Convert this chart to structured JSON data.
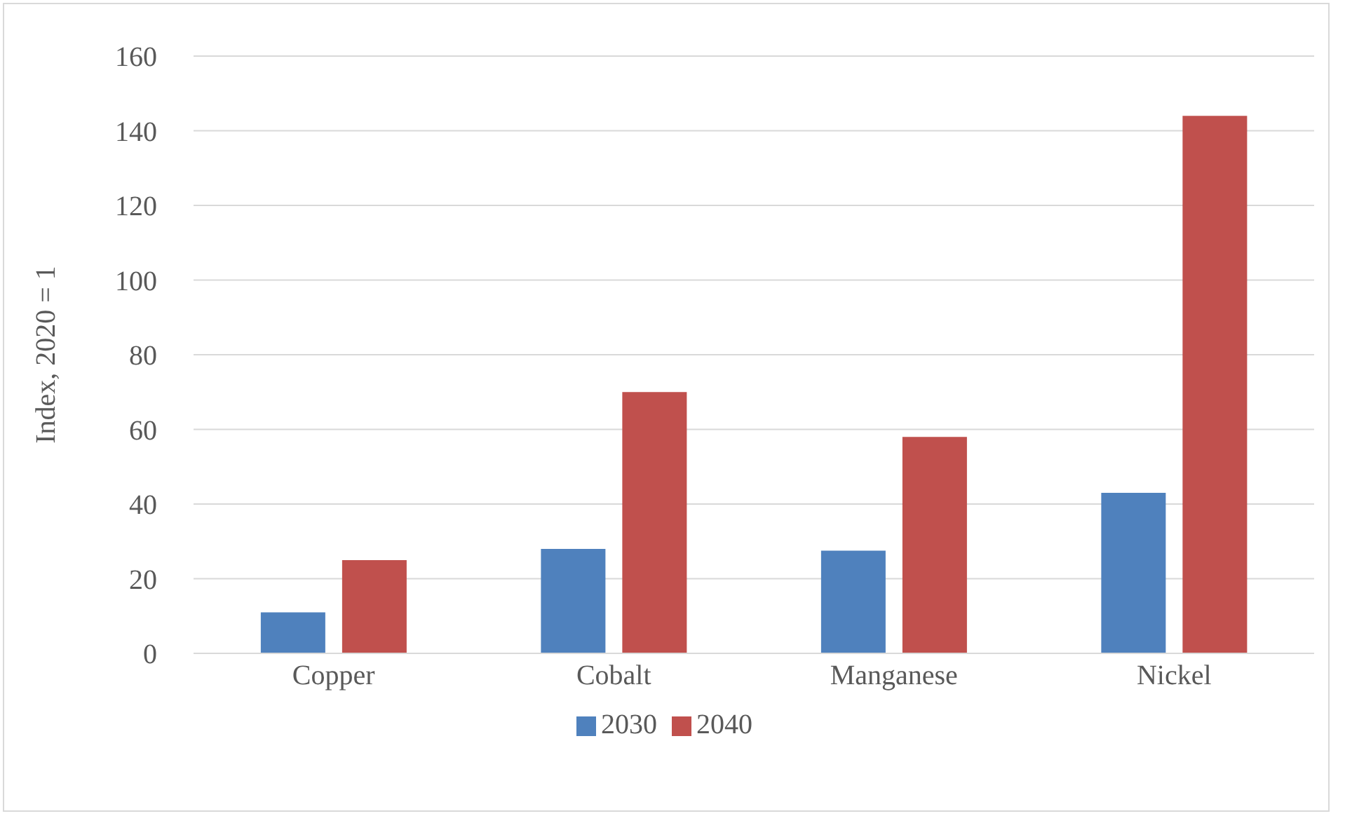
{
  "chart_data": {
    "type": "bar",
    "ylabel": "Index, 2020 = 1",
    "categories": [
      "Copper",
      "Cobalt",
      "Manganese",
      "Nickel"
    ],
    "series": [
      {
        "name": "2030",
        "color": "#4f81bd",
        "values": [
          11,
          28,
          27.5,
          43
        ]
      },
      {
        "name": "2040",
        "color": "#c0504d",
        "values": [
          25,
          70,
          58,
          144
        ]
      }
    ],
    "ylim": [
      0,
      160
    ],
    "yticks": [
      0,
      20,
      40,
      60,
      80,
      100,
      120,
      140,
      160
    ],
    "grid": "y",
    "legend": "bottom"
  }
}
